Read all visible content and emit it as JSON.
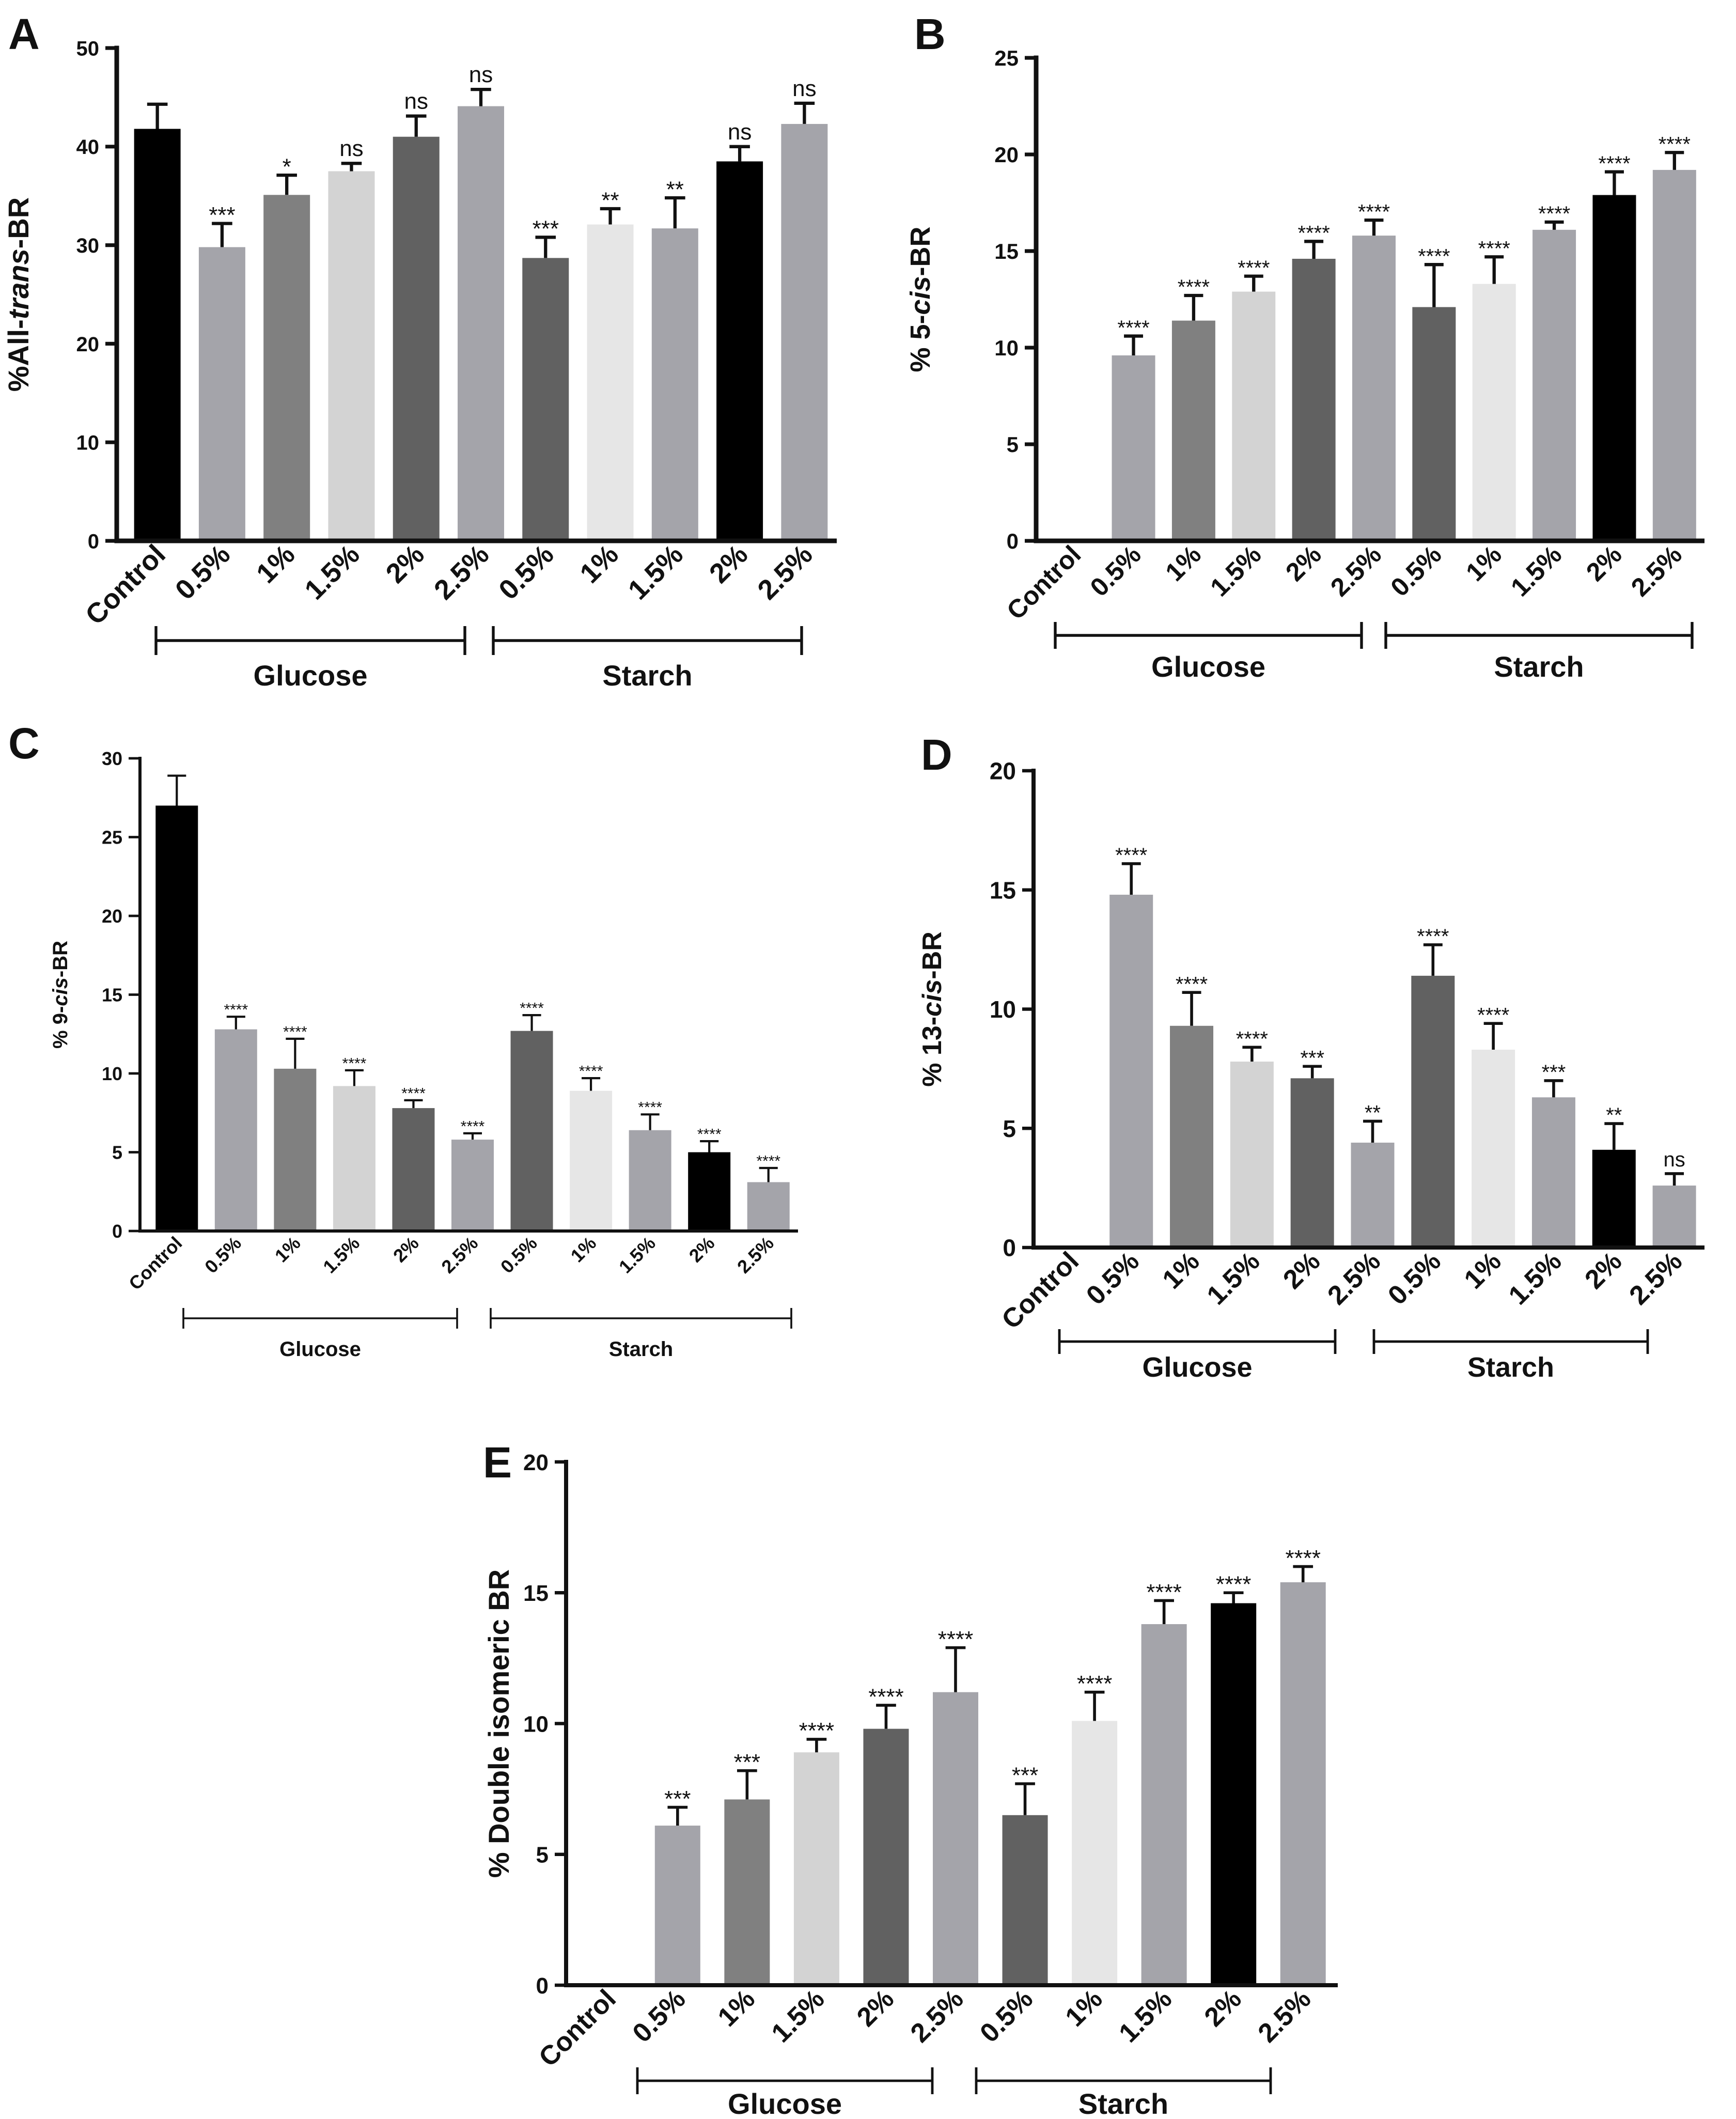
{
  "categories": [
    "Control",
    "0.5%",
    "1%",
    "1.5%",
    "2%",
    "2.5%",
    "0.5%",
    "1%",
    "1.5%",
    "2%",
    "2.5%"
  ],
  "bar_colors": [
    "#000000",
    "#a4a4aa",
    "#808080",
    "#d3d3d3",
    "#616161",
    "#a4a4aa",
    "#616161",
    "#e6e6e6",
    "#a4a4aa",
    "#000000",
    "#a4a4aa"
  ],
  "chart_data": [
    {
      "type": "bar",
      "panel": "A",
      "ylabel_prefix": "%All-",
      "ylabel_italic": "trans",
      "ylabel_suffix": "-BR",
      "ylim": [
        0,
        50
      ],
      "yticks": [
        "0",
        "10",
        "20",
        "30",
        "40",
        "50"
      ],
      "ytick_values": [
        0,
        10,
        20,
        30,
        40,
        50
      ],
      "values": [
        41.8,
        29.8,
        35.1,
        37.5,
        41.0,
        44.1,
        28.7,
        32.1,
        31.7,
        38.5,
        42.3
      ],
      "errors": [
        2.5,
        2.4,
        2.0,
        0.8,
        2.1,
        1.7,
        2.1,
        1.6,
        3.1,
        1.5,
        2.1
      ],
      "annotations": [
        "",
        "***",
        "*",
        "ns",
        "ns",
        "ns",
        "***",
        "**",
        "**",
        "ns",
        "ns"
      ],
      "groups": [
        {
          "label": "Glucose"
        },
        {
          "label": "Starch"
        }
      ]
    },
    {
      "type": "bar",
      "panel": "B",
      "ylabel_prefix": "% 5-",
      "ylabel_italic": "cis",
      "ylabel_suffix": "-BR",
      "ylim": [
        0,
        25
      ],
      "yticks": [
        "0",
        "5",
        "10",
        "15",
        "20",
        "25"
      ],
      "ytick_values": [
        0,
        5,
        10,
        15,
        20,
        25
      ],
      "values": [
        0,
        9.6,
        11.4,
        12.9,
        14.6,
        15.8,
        12.1,
        13.3,
        16.1,
        17.9,
        19.2
      ],
      "errors": [
        0,
        1.0,
        1.3,
        0.8,
        0.9,
        0.8,
        2.2,
        1.4,
        0.4,
        1.2,
        0.9
      ],
      "annotations": [
        "",
        "****",
        "****",
        "****",
        "****",
        "****",
        "****",
        "****",
        "****",
        "****",
        "****"
      ],
      "groups": [
        {
          "label": "Glucose"
        },
        {
          "label": "Starch"
        }
      ]
    },
    {
      "type": "bar",
      "panel": "C",
      "ylabel_prefix": "% 9-",
      "ylabel_italic": "cis",
      "ylabel_suffix": "-BR",
      "ylim": [
        0,
        30
      ],
      "yticks": [
        "0",
        "5",
        "10",
        "15",
        "20",
        "25",
        "30"
      ],
      "ytick_values": [
        0,
        5,
        10,
        15,
        20,
        25,
        30
      ],
      "values": [
        27.0,
        12.8,
        10.3,
        9.2,
        7.8,
        5.8,
        12.7,
        8.9,
        6.4,
        5.0,
        3.1
      ],
      "errors": [
        1.9,
        0.8,
        1.9,
        1.0,
        0.5,
        0.4,
        1.0,
        0.8,
        1.0,
        0.7,
        0.9
      ],
      "annotations": [
        "",
        "****",
        "****",
        "****",
        "****",
        "****",
        "****",
        "****",
        "****",
        "****",
        "****"
      ],
      "groups": [
        {
          "label": "Glucose"
        },
        {
          "label": "Starch"
        }
      ]
    },
    {
      "type": "bar",
      "panel": "D",
      "ylabel_prefix": "% 13-",
      "ylabel_italic": "cis",
      "ylabel_suffix": "-BR",
      "ylim": [
        0,
        20
      ],
      "yticks": [
        "0",
        "5",
        "10",
        "15",
        "20"
      ],
      "ytick_values": [
        0,
        5,
        10,
        15,
        20
      ],
      "values": [
        0,
        14.8,
        9.3,
        7.8,
        7.1,
        4.4,
        11.4,
        8.3,
        6.3,
        4.1,
        2.6
      ],
      "errors": [
        0,
        1.3,
        1.4,
        0.6,
        0.5,
        0.9,
        1.3,
        1.1,
        0.7,
        1.1,
        0.5
      ],
      "annotations": [
        "",
        "****",
        "****",
        "****",
        "***",
        "**",
        "****",
        "****",
        "***",
        "**",
        "ns"
      ],
      "groups": [
        {
          "label": "Glucose"
        },
        {
          "label": "Starch"
        }
      ]
    },
    {
      "type": "bar",
      "panel": "E",
      "ylabel_prefix": "% Double isomeric BR",
      "ylabel_italic": "",
      "ylabel_suffix": "",
      "ylim": [
        0,
        20
      ],
      "yticks": [
        "0",
        "5",
        "10",
        "15",
        "20"
      ],
      "ytick_values": [
        0,
        5,
        10,
        15,
        20
      ],
      "values": [
        0,
        6.1,
        7.1,
        8.9,
        9.8,
        11.2,
        6.5,
        10.1,
        13.8,
        14.6,
        15.4
      ],
      "errors": [
        0,
        0.7,
        1.1,
        0.5,
        0.9,
        1.7,
        1.2,
        1.1,
        0.9,
        0.4,
        0.6
      ],
      "annotations": [
        "",
        "***",
        "***",
        "****",
        "****",
        "****",
        "***",
        "****",
        "****",
        "****",
        "****"
      ],
      "groups": [
        {
          "label": "Glucose"
        },
        {
          "label": "Starch"
        }
      ]
    }
  ]
}
